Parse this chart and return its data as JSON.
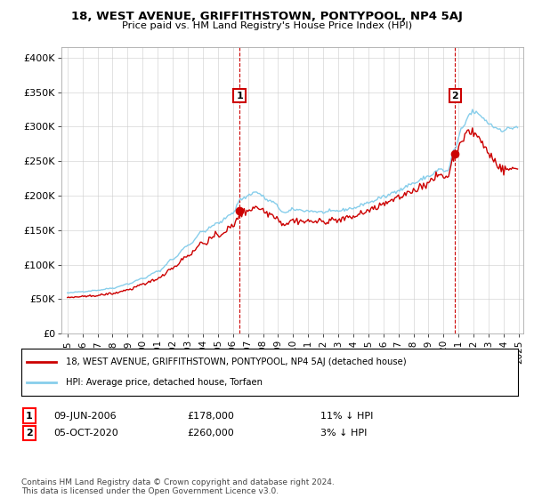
{
  "title": "18, WEST AVENUE, GRIFFITHSTOWN, PONTYPOOL, NP4 5AJ",
  "subtitle": "Price paid vs. HM Land Registry's House Price Index (HPI)",
  "legend_line1": "18, WEST AVENUE, GRIFFITHSTOWN, PONTYPOOL, NP4 5AJ (detached house)",
  "legend_line2": "HPI: Average price, detached house, Torfaen",
  "sale1_date": "09-JUN-2006",
  "sale1_price": 178000,
  "sale1_label": "11% ↓ HPI",
  "sale2_date": "05-OCT-2020",
  "sale2_price": 260000,
  "sale2_label": "3% ↓ HPI",
  "footer": "Contains HM Land Registry data © Crown copyright and database right 2024.\nThis data is licensed under the Open Government Licence v3.0.",
  "hpi_color": "#87CEEB",
  "price_color": "#cc0000",
  "sale_marker_color": "#cc0000",
  "vline_color": "#cc0000",
  "ytick_labels": [
    "£0",
    "£50K",
    "£100K",
    "£150K",
    "£200K",
    "£250K",
    "£300K",
    "£350K",
    "£400K"
  ],
  "yticks": [
    0,
    50000,
    100000,
    150000,
    200000,
    250000,
    300000,
    350000,
    400000
  ],
  "ylim": [
    0,
    415000
  ],
  "xlim": [
    1994.6,
    2025.3
  ],
  "start_year": 1995,
  "end_year": 2025
}
